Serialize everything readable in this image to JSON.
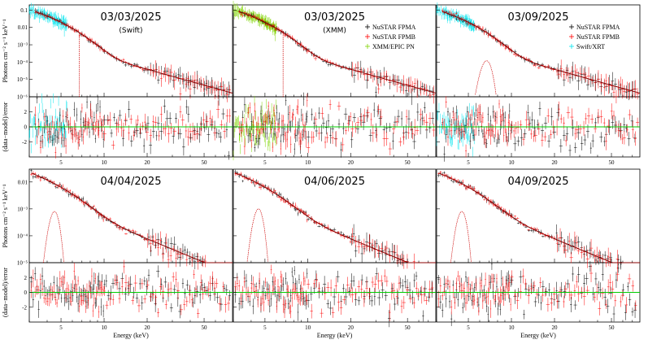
{
  "chart_data": {
    "type": "scatter",
    "figure": {
      "xlabel": "Energy (keV)",
      "ylabel_spectrum": "Photons cm⁻² s⁻¹ keV⁻¹",
      "ylabel_residual": "(data−model)/error",
      "x_scale": "log",
      "y_scale_spectrum": "log",
      "xlim": [
        3,
        79
      ],
      "xticks": [
        5,
        10,
        20,
        50
      ],
      "ylim_residual": [
        -4,
        4
      ],
      "residual_ticks": [
        -2,
        0,
        2
      ],
      "model_line_color": "#8b0000",
      "zero_line_color": "#00cc00"
    },
    "panels": [
      {
        "date": "03/03/2025",
        "sublabel": "(Swift)",
        "ylim": [
          1e-06,
          0.2
        ],
        "yticks": [
          {
            "v": 0.1,
            "t": "0.1"
          },
          {
            "v": 0.01,
            "t": "0.01"
          },
          {
            "v": 0.001,
            "t": "10⁻³"
          },
          {
            "v": 0.0001,
            "t": "10⁻⁴"
          },
          {
            "v": 1e-05,
            "t": "10⁻⁵"
          },
          {
            "v": 1e-06,
            "t": "10⁻⁶"
          }
        ],
        "model": {
          "norm": 0.1,
          "kT": 1.2,
          "tail": 0.003,
          "gamma": 2.3
        },
        "soft": {
          "instrument": "Swift/XRT",
          "range": [
            3,
            5.5
          ],
          "color": "#00e5ee"
        },
        "line": {
          "type": "vline",
          "energy": 6.7
        },
        "legend": []
      },
      {
        "date": "03/03/2025",
        "sublabel": "(XMM)",
        "ylim": [
          1e-06,
          0.2
        ],
        "yticks": [
          {
            "v": 0.1,
            "t": "0.1"
          },
          {
            "v": 0.01,
            "t": "0.01"
          },
          {
            "v": 0.001,
            "t": "10⁻³"
          },
          {
            "v": 0.0001,
            "t": "10⁻⁴"
          },
          {
            "v": 1e-05,
            "t": "10⁻⁵"
          },
          {
            "v": 1e-06,
            "t": "10⁻⁶"
          }
        ],
        "model": {
          "norm": 0.1,
          "kT": 1.2,
          "tail": 0.003,
          "gamma": 2.3
        },
        "soft": {
          "instrument": "XMM/EPIC PN",
          "range": [
            3,
            6
          ],
          "color": "#7fd400"
        },
        "line": {
          "type": "vline",
          "energy": 6.7
        },
        "legend": [
          {
            "label": "NuSTAR FPMA",
            "color": "#000000"
          },
          {
            "label": "NuSTAR FPMB",
            "color": "#ff0000"
          },
          {
            "label": "XMM/EPIC PN",
            "color": "#7fd400"
          }
        ]
      },
      {
        "date": "03/09/2025",
        "sublabel": "",
        "ylim": [
          1e-06,
          0.2
        ],
        "yticks": [
          {
            "v": 0.1,
            "t": "0.1"
          },
          {
            "v": 0.01,
            "t": "0.01"
          },
          {
            "v": 0.001,
            "t": "10⁻³"
          },
          {
            "v": 0.0001,
            "t": "10⁻⁴"
          },
          {
            "v": 1e-05,
            "t": "10⁻⁵"
          },
          {
            "v": 1e-06,
            "t": "10⁻⁶"
          }
        ],
        "model": {
          "norm": 0.1,
          "kT": 1.2,
          "tail": 0.003,
          "gamma": 2.3
        },
        "soft": {
          "instrument": "Swift/XRT",
          "range": [
            3,
            5.5
          ],
          "color": "#00e5ee"
        },
        "line": {
          "type": "gauss",
          "energy": 6.7,
          "peak": 0.00012
        },
        "legend": [
          {
            "label": "NuSTAR FPMA",
            "color": "#000000"
          },
          {
            "label": "NuSTAR FPMB",
            "color": "#ff0000"
          },
          {
            "label": "Swift/XRT",
            "color": "#00e5ee"
          }
        ]
      },
      {
        "date": "04/04/2025",
        "sublabel": "",
        "ylim": [
          1e-05,
          0.03
        ],
        "yticks": [
          {
            "v": 0.01,
            "t": "0.01"
          },
          {
            "v": 0.001,
            "t": "10⁻³"
          },
          {
            "v": 0.0001,
            "t": "10⁻⁴"
          },
          {
            "v": 1e-05,
            "t": "10⁻⁵"
          }
        ],
        "model": {
          "norm": 0.018,
          "kT": 1.5,
          "tail": 0.005,
          "gamma": 2.2
        },
        "soft": null,
        "line": {
          "type": "gauss",
          "energy": 4.5,
          "peak": 0.0008
        },
        "legend": []
      },
      {
        "date": "04/06/2025",
        "sublabel": "",
        "ylim": [
          1e-05,
          0.03
        ],
        "yticks": [
          {
            "v": 0.01,
            "t": "0.01"
          },
          {
            "v": 0.001,
            "t": "10⁻³"
          },
          {
            "v": 0.0001,
            "t": "10⁻⁴"
          },
          {
            "v": 1e-05,
            "t": "10⁻⁵"
          }
        ],
        "model": {
          "norm": 0.018,
          "kT": 1.5,
          "tail": 0.005,
          "gamma": 2.2
        },
        "soft": null,
        "line": {
          "type": "gauss",
          "energy": 4.5,
          "peak": 0.001
        },
        "legend": []
      },
      {
        "date": "04/09/2025",
        "sublabel": "",
        "ylim": [
          1e-05,
          0.03
        ],
        "yticks": [
          {
            "v": 0.01,
            "t": "0.01"
          },
          {
            "v": 0.001,
            "t": "10⁻³"
          },
          {
            "v": 0.0001,
            "t": "10⁻⁴"
          },
          {
            "v": 1e-05,
            "t": "10⁻⁵"
          }
        ],
        "model": {
          "norm": 0.018,
          "kT": 1.5,
          "tail": 0.005,
          "gamma": 2.2
        },
        "soft": null,
        "line": {
          "type": "gauss",
          "energy": 4.5,
          "peak": 0.0008
        },
        "legend": []
      }
    ]
  }
}
